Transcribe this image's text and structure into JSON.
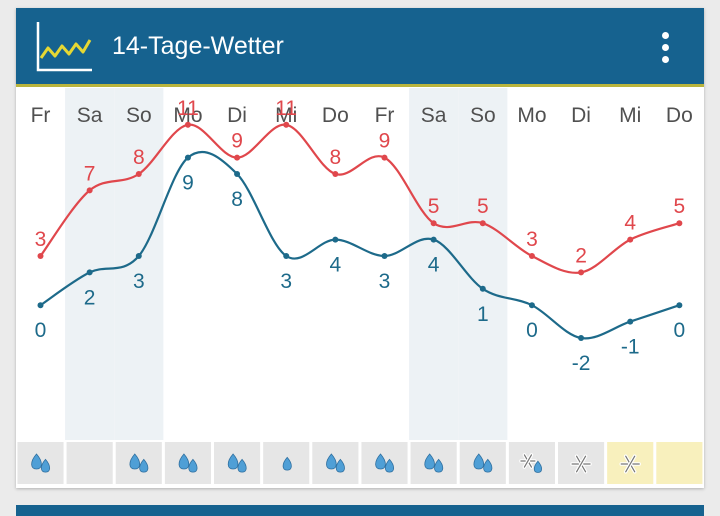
{
  "app": {
    "title": "14-Tage-Wetter"
  },
  "header": {
    "logo_icon": "line-chart-icon",
    "menu_icon": "more-vert-icon"
  },
  "colors": {
    "header_bg": "#16628f",
    "accent_line": "#b9b43c",
    "max_line": "#e0474c",
    "min_line": "#1d6a8a",
    "weekend_bg": "#edf2f5",
    "icon_fill": "#4f9fd6"
  },
  "chart_data": {
    "type": "line",
    "categories": [
      "Fr",
      "Sa",
      "So",
      "Mo",
      "Di",
      "Mi",
      "Do",
      "Fr",
      "Sa",
      "So",
      "Mo",
      "Di",
      "Mi",
      "Do"
    ],
    "series": [
      {
        "values": [
          3,
          7,
          8,
          11,
          9,
          11,
          8,
          9,
          5,
          5,
          3,
          2,
          4,
          5
        ]
      },
      {
        "values": [
          0,
          2,
          3,
          9,
          8,
          3,
          4,
          3,
          4,
          1,
          0,
          -2,
          -1,
          0
        ]
      }
    ],
    "weekend_days": [
      1,
      2,
      8,
      9
    ],
    "ylim": [
      -2,
      11
    ],
    "grid": false,
    "precipitation_icons": [
      "rain",
      "none",
      "rain",
      "rain",
      "rain",
      "drizzle",
      "rain",
      "rain",
      "rain",
      "rain",
      "sleet",
      "snow",
      "snow",
      "none"
    ],
    "highlighted_icon_days": [
      12,
      13
    ]
  }
}
